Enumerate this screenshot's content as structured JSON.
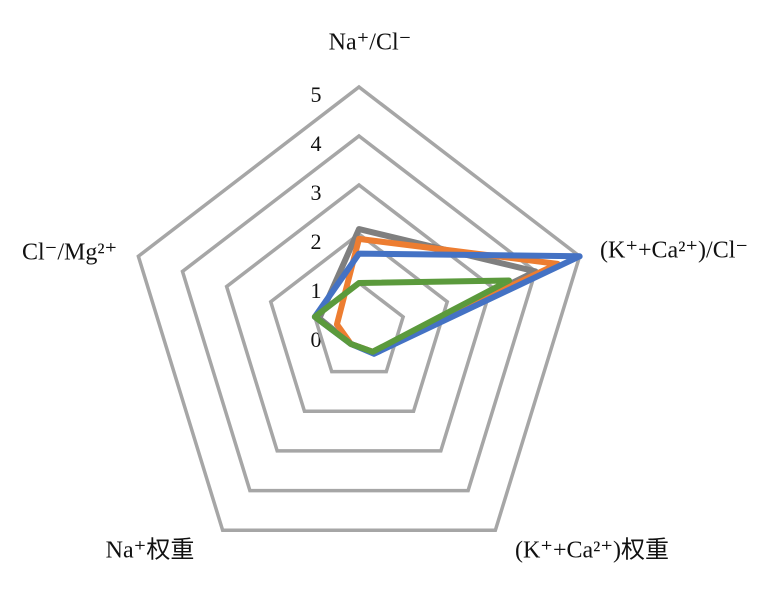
{
  "chart_data": {
    "type": "radar",
    "categories": [
      "Na⁺/Cl⁻",
      "(K⁺+Ca²⁺)/Cl⁻",
      "(K⁺+Ca²⁺)权重",
      "Na⁺权重",
      "Cl⁻/Mg²⁺"
    ],
    "rlim": [
      0,
      5
    ],
    "rticks": [
      0,
      1,
      2,
      3,
      4,
      5
    ],
    "grid_color": "#a6a6a6",
    "series": [
      {
        "color": "#7f7f7f",
        "values": [
          2.1,
          4.0,
          0.5,
          0.3,
          0.9
        ]
      },
      {
        "color": "#ed7d31",
        "values": [
          1.9,
          4.5,
          0.5,
          0.3,
          0.5
        ]
      },
      {
        "color": "#4472c4",
        "values": [
          1.6,
          5.0,
          0.55,
          0.3,
          1.0
        ]
      },
      {
        "color": "#5b9a3c",
        "values": [
          1.0,
          3.4,
          0.5,
          0.3,
          1.0
        ]
      }
    ]
  }
}
